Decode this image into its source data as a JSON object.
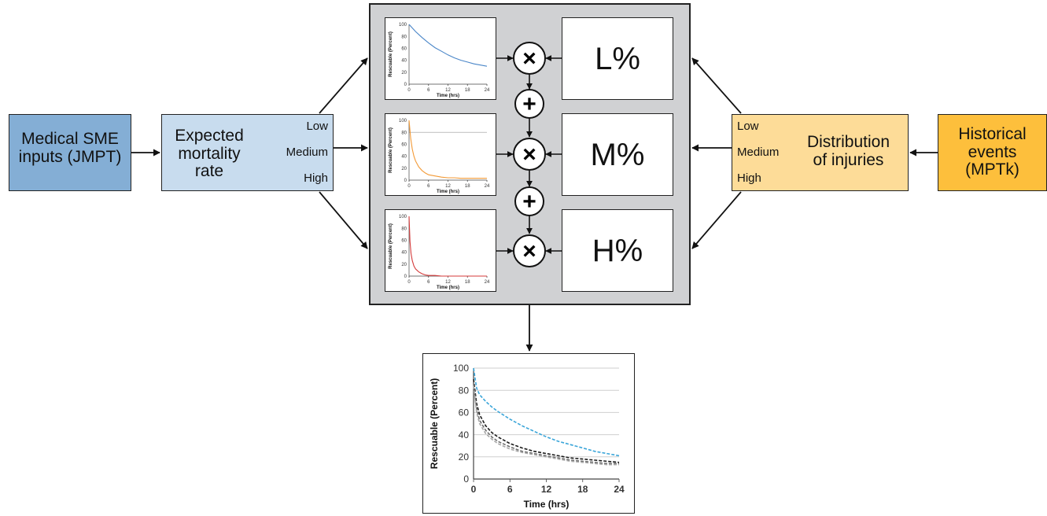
{
  "inputs": {
    "medical_sme": {
      "line1": "Medical SME",
      "line2": "inputs (JMPT)",
      "fill": "#84aed5"
    },
    "historical": {
      "line1": "Historical",
      "line2": "events",
      "line3": "(MPTk)",
      "fill": "#fdbf3c"
    }
  },
  "mortality": {
    "line1": "Expected",
    "line2": "mortality",
    "line3": "rate",
    "levels": [
      "Low",
      "Medium",
      "High"
    ],
    "fill": "#c8dcee"
  },
  "distribution": {
    "line1": "Distribution",
    "line2": "of injuries",
    "levels": [
      "Low",
      "Medium",
      "High"
    ],
    "fill": "#fddc98"
  },
  "center": {
    "fill": "#d0d1d3",
    "weights": [
      "L%",
      "M%",
      "H%"
    ],
    "multiply_symbol": "×",
    "add_symbol": "+"
  },
  "chart_data": [
    {
      "type": "line",
      "xlabel": "Time (hrs)",
      "ylabel": "Rescuable (Percent)",
      "xticks": [
        "0",
        "6",
        "12",
        "18",
        "24"
      ],
      "yticks": [
        "0",
        "20",
        "40",
        "60",
        "80",
        "100"
      ],
      "xlim": [
        0,
        24
      ],
      "ylim": [
        0,
        100
      ],
      "series": [
        {
          "color": "#4a86c8",
          "x": [
            0,
            2,
            4,
            6,
            8,
            10,
            12,
            14,
            16,
            18,
            20,
            22,
            24
          ],
          "y": [
            100,
            88,
            78,
            69,
            61,
            55,
            49,
            44,
            40,
            37,
            34,
            32,
            30
          ]
        }
      ]
    },
    {
      "type": "line",
      "xlabel": "Time (hrs)",
      "ylabel": "Rescuable (Percent)",
      "xticks": [
        "0",
        "6",
        "12",
        "18",
        "24"
      ],
      "yticks": [
        "0",
        "20",
        "40",
        "60",
        "80",
        "100"
      ],
      "xlim": [
        0,
        24
      ],
      "ylim": [
        0,
        100
      ],
      "series": [
        {
          "color": "#f39a36",
          "x": [
            0,
            0.5,
            1,
            1.5,
            2,
            3,
            4,
            5,
            6,
            8,
            10,
            12,
            14,
            16,
            18,
            20,
            22,
            24
          ],
          "y": [
            100,
            70,
            52,
            40,
            32,
            22,
            16,
            12,
            9,
            7,
            5,
            4,
            4,
            3,
            3,
            3,
            3,
            3
          ]
        }
      ]
    },
    {
      "type": "line",
      "xlabel": "Time (hrs)",
      "ylabel": "Rescuable (Percent)",
      "xticks": [
        "0",
        "6",
        "12",
        "18",
        "24"
      ],
      "yticks": [
        "0",
        "20",
        "40",
        "60",
        "80",
        "100"
      ],
      "xlim": [
        0,
        24
      ],
      "ylim": [
        0,
        100
      ],
      "series": [
        {
          "color": "#d43a3a",
          "x": [
            0,
            0.3,
            0.6,
            1,
            1.5,
            2,
            3,
            4,
            5,
            6,
            8,
            10,
            12,
            16,
            20,
            24
          ],
          "y": [
            100,
            58,
            38,
            26,
            17,
            12,
            7,
            4,
            2,
            1,
            1,
            0,
            0,
            0,
            0,
            0
          ]
        }
      ]
    },
    {
      "type": "line",
      "xlabel": "Time (hrs)",
      "ylabel": "Rescuable (Percent)",
      "xticks": [
        "0",
        "6",
        "12",
        "18",
        "24"
      ],
      "yticks": [
        "0",
        "20",
        "40",
        "60",
        "80",
        "100"
      ],
      "xlim": [
        0,
        24
      ],
      "ylim": [
        0,
        100
      ],
      "grid": true,
      "series": [
        {
          "color": "#3aa5d9",
          "dashed": true,
          "x": [
            0,
            0.5,
            1,
            2,
            3,
            4,
            6,
            8,
            10,
            12,
            14,
            16,
            18,
            20,
            22,
            24
          ],
          "y": [
            100,
            82,
            76,
            70,
            65,
            61,
            54,
            48,
            43,
            38,
            34,
            31,
            28,
            25,
            23,
            21
          ]
        },
        {
          "color": "#1a1a1a",
          "dashed": true,
          "x": [
            0,
            0.5,
            1,
            2,
            3,
            4,
            6,
            8,
            10,
            12,
            14,
            16,
            18,
            20,
            22,
            24
          ],
          "y": [
            90,
            68,
            58,
            48,
            42,
            38,
            32,
            28,
            25,
            23,
            21,
            19,
            18,
            17,
            16,
            15
          ]
        },
        {
          "color": "#6e6e6e",
          "dashed": true,
          "x": [
            0,
            0.5,
            1,
            2,
            3,
            4,
            6,
            8,
            10,
            12,
            14,
            16,
            18,
            20,
            22,
            24
          ],
          "y": [
            86,
            63,
            53,
            44,
            38,
            34,
            29,
            25,
            23,
            21,
            19,
            17,
            16,
            15,
            14,
            14
          ]
        },
        {
          "color": "#a8a8a8",
          "dashed": true,
          "x": [
            0,
            0.5,
            1,
            2,
            3,
            4,
            6,
            8,
            10,
            12,
            14,
            16,
            18,
            20,
            22,
            24
          ],
          "y": [
            84,
            60,
            50,
            41,
            36,
            32,
            27,
            24,
            22,
            20,
            18,
            16,
            15,
            14,
            13,
            13
          ]
        }
      ]
    }
  ]
}
